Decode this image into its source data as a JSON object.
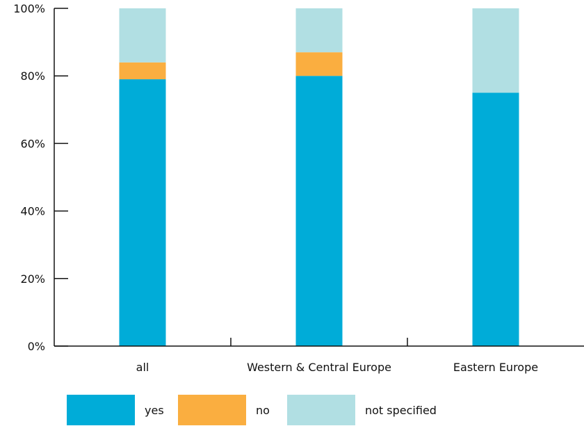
{
  "chart_data": {
    "type": "bar",
    "stacked": true,
    "categories": [
      "all",
      "Western & Central Europe",
      "Eastern Europe"
    ],
    "series": [
      {
        "name": "yes",
        "color": "#00acd8",
        "values": [
          79,
          80,
          75
        ]
      },
      {
        "name": "no",
        "color": "#faae40",
        "values": [
          5,
          7,
          0
        ]
      },
      {
        "name": "not specified",
        "color": "#b1dfe3",
        "values": [
          16,
          13,
          25
        ]
      }
    ],
    "yticks": [
      "0%",
      "20%",
      "40%",
      "60%",
      "80%",
      "100%"
    ],
    "ylim": [
      0,
      100
    ],
    "legend_position": "bottom",
    "grid": false,
    "title": "",
    "xlabel": "",
    "ylabel": ""
  }
}
